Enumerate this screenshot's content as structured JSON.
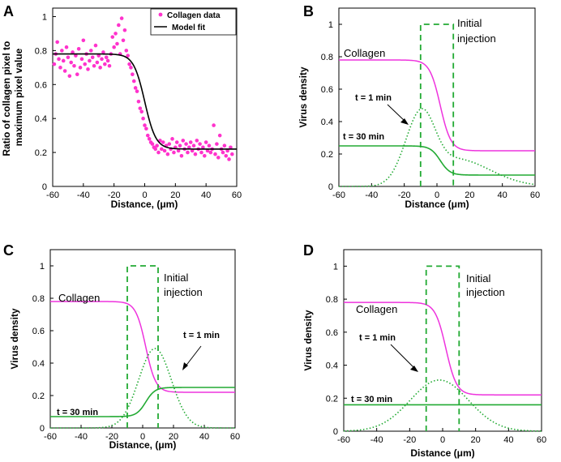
{
  "figure": {
    "labels": [
      "A",
      "B",
      "C",
      "D"
    ]
  },
  "chart_data": [
    {
      "panel": "A",
      "type": "scatter",
      "title": "",
      "xlabel": "Distance, (μm)",
      "ylabel": "Ratio of collagen pixel to maximum pixel value",
      "xlim": [
        -60,
        60
      ],
      "ylim": [
        0,
        1.05
      ],
      "xticks": [
        "-60",
        "-40",
        "-20",
        "0",
        "20",
        "40",
        "60"
      ],
      "yticks": [
        "0",
        "0.2",
        "0.4",
        "0.6",
        "0.8",
        "1"
      ],
      "legend": {
        "position": "top-right",
        "entries": [
          "Collagen data",
          "Model fit"
        ]
      },
      "series": [
        {
          "name": "Collagen data",
          "style": "dots",
          "color": "#ff33cc",
          "x": [
            -59,
            -58,
            -57,
            -56,
            -55,
            -54,
            -53,
            -52,
            -51,
            -50,
            -49,
            -48,
            -47,
            -46,
            -45,
            -44,
            -43,
            -42,
            -41,
            -40,
            -39,
            -38,
            -37,
            -36,
            -35,
            -34,
            -33,
            -32,
            -31,
            -30,
            -29,
            -28,
            -27,
            -26,
            -25,
            -24,
            -23,
            -22,
            -21,
            -20,
            -19,
            -18,
            -17,
            -16,
            -15,
            -14,
            -13,
            -12,
            -11,
            -10,
            -9,
            -8,
            -7,
            -6,
            -5,
            -4,
            -3,
            -2,
            -1,
            0,
            1,
            2,
            3,
            4,
            5,
            6,
            7,
            8,
            9,
            10,
            11,
            12,
            13,
            14,
            15,
            16,
            17,
            18,
            19,
            20,
            21,
            22,
            23,
            24,
            25,
            26,
            27,
            28,
            29,
            30,
            31,
            32,
            33,
            34,
            35,
            36,
            37,
            38,
            39,
            40,
            41,
            42,
            43,
            44,
            45,
            46,
            47,
            48,
            49,
            50,
            51,
            52,
            53,
            54,
            55,
            56,
            57
          ],
          "y": [
            0.72,
            0.78,
            0.85,
            0.75,
            0.7,
            0.8,
            0.74,
            0.68,
            0.82,
            0.76,
            0.65,
            0.73,
            0.79,
            0.71,
            0.77,
            0.66,
            0.81,
            0.7,
            0.75,
            0.86,
            0.72,
            0.78,
            0.69,
            0.74,
            0.8,
            0.76,
            0.71,
            0.83,
            0.73,
            0.77,
            0.7,
            0.75,
            0.79,
            0.72,
            0.76,
            0.74,
            0.71,
            0.78,
            0.88,
            0.82,
            0.9,
            0.84,
            0.95,
            0.78,
            0.99,
            0.86,
            0.92,
            0.8,
            0.77,
            0.72,
            0.7,
            0.66,
            0.62,
            0.58,
            0.56,
            0.5,
            0.46,
            0.44,
            0.4,
            0.36,
            0.34,
            0.3,
            0.28,
            0.26,
            0.25,
            0.23,
            0.22,
            0.24,
            0.2,
            0.27,
            0.22,
            0.26,
            0.21,
            0.24,
            0.19,
            0.25,
            0.22,
            0.28,
            0.2,
            0.23,
            0.26,
            0.21,
            0.24,
            0.18,
            0.27,
            0.22,
            0.25,
            0.2,
            0.23,
            0.26,
            0.21,
            0.24,
            0.19,
            0.27,
            0.22,
            0.25,
            0.2,
            0.23,
            0.18,
            0.26,
            0.21,
            0.24,
            0.2,
            0.22,
            0.36,
            0.19,
            0.25,
            0.17,
            0.3,
            0.22,
            0.2,
            0.24,
            0.18,
            0.21,
            0.16,
            0.23,
            0.19
          ]
        },
        {
          "name": "Model fit",
          "style": "line",
          "color": "#000000",
          "high": 0.78,
          "low": 0.22,
          "center": 0,
          "width": 2.8
        }
      ]
    },
    {
      "panel": "B",
      "type": "line",
      "xlabel": "Distance (μm)",
      "ylabel": "Virus density",
      "xlim": [
        -60,
        60
      ],
      "ylim": [
        0,
        1.1
      ],
      "xticks": [
        "-60",
        "-40",
        "-20",
        "0",
        "20",
        "40",
        "60"
      ],
      "yticks": [
        "0",
        "0.2",
        "0.4",
        "0.6",
        "0.8",
        "1"
      ],
      "annotations": {
        "collagen": "Collagen",
        "initial_line1": "Initial",
        "initial_line2": "injection",
        "t1": "t = 1 min",
        "t30": "t = 30 min"
      },
      "series": [
        {
          "name": "Collagen",
          "color": "#ee33dd",
          "style": "solid",
          "high": 0.78,
          "low": 0.22,
          "center": 2,
          "width": 2.5
        },
        {
          "name": "Initial injection",
          "color": "#22aa33",
          "style": "dashed",
          "x": [
            -10,
            -10,
            10,
            10
          ],
          "y": [
            0,
            1,
            1,
            0
          ]
        },
        {
          "name": "t = 1 min",
          "color": "#22aa33",
          "style": "dotted",
          "peak_x": -9,
          "peak_y": 0.48,
          "left_width": 14,
          "right_tail": 0.17
        },
        {
          "name": "t = 30 min",
          "color": "#22aa33",
          "style": "solid",
          "left": 0.25,
          "right": 0.07,
          "center": 2
        }
      ]
    },
    {
      "panel": "C",
      "type": "line",
      "xlabel": "Distance, (μm)",
      "ylabel": "Virus density",
      "xlim": [
        -60,
        60
      ],
      "ylim": [
        0,
        1.1
      ],
      "xticks": [
        "-60",
        "-40",
        "-20",
        "0",
        "20",
        "40",
        "60"
      ],
      "yticks": [
        "0",
        "0.2",
        "0.4",
        "0.6",
        "0.8",
        "1"
      ],
      "annotations": {
        "collagen": "Collagen",
        "initial_line1": "Initial",
        "initial_line2": "injection",
        "t1": "t = 1 min",
        "t30": "t = 30 min"
      },
      "series": [
        {
          "name": "Collagen",
          "color": "#ee33dd",
          "style": "solid",
          "high": 0.78,
          "low": 0.22,
          "center": 2,
          "width": 2.5
        },
        {
          "name": "Initial injection",
          "color": "#22aa33",
          "style": "dashed",
          "x": [
            -10,
            -10,
            10,
            10
          ],
          "y": [
            0,
            1,
            1,
            0
          ]
        },
        {
          "name": "t = 1 min",
          "color": "#22aa33",
          "style": "dotted",
          "peak_x": 8,
          "peak_y": 0.49,
          "width": 15
        },
        {
          "name": "t = 30 min",
          "color": "#22aa33",
          "style": "solid",
          "left": 0.07,
          "right": 0.25,
          "center": 2
        }
      ]
    },
    {
      "panel": "D",
      "type": "line",
      "xlabel": "Distance (μm)",
      "ylabel": "Virus density",
      "xlim": [
        -60,
        60
      ],
      "ylim": [
        0,
        1.1
      ],
      "xticks": [
        "-60",
        "-40",
        "-20",
        "0",
        "20",
        "40",
        "60"
      ],
      "yticks": [
        "0",
        "0.2",
        "0.4",
        "0.6",
        "0.8",
        "1"
      ],
      "annotations": {
        "collagen": "Collagen",
        "initial_line1": "Initial",
        "initial_line2": "injection",
        "t1": "t = 1 min",
        "t30": "t = 30 min"
      },
      "series": [
        {
          "name": "Collagen",
          "color": "#ee33dd",
          "style": "solid",
          "high": 0.78,
          "low": 0.22,
          "center": 2,
          "width": 2.5
        },
        {
          "name": "Initial injection",
          "color": "#22aa33",
          "style": "dashed",
          "x": [
            -10,
            -10,
            10,
            10
          ],
          "y": [
            0,
            1,
            1,
            0
          ]
        },
        {
          "name": "t = 1 min",
          "color": "#22aa33",
          "style": "dotted",
          "peak_x": -2,
          "peak_y": 0.31,
          "width": 25
        },
        {
          "name": "t = 30 min",
          "color": "#22aa33",
          "style": "solid",
          "left": 0.16,
          "right": 0.16,
          "center": 2
        }
      ]
    }
  ]
}
